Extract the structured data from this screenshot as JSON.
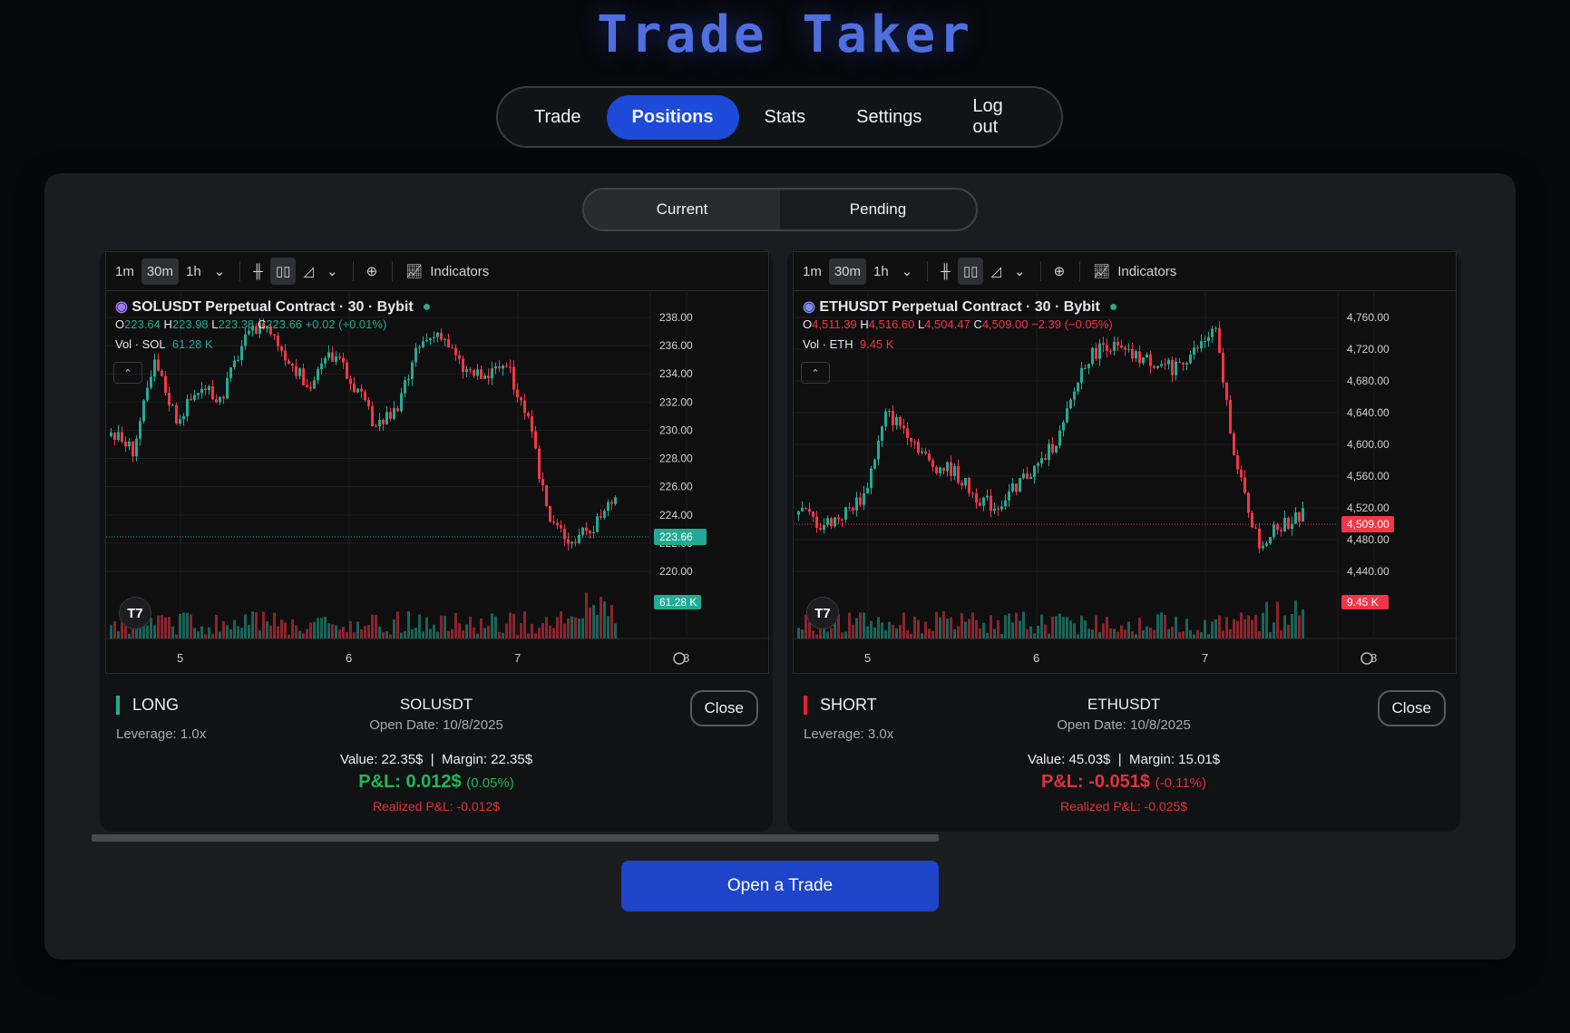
{
  "app": {
    "title": "Trade Taker"
  },
  "nav": [
    {
      "label": "Trade"
    },
    {
      "label": "Positions"
    },
    {
      "label": "Stats"
    },
    {
      "label": "Settings"
    },
    {
      "label": "Log out"
    }
  ],
  "tabs": {
    "current": "Current",
    "pending": "Pending"
  },
  "colors": {
    "up": "#22ab94",
    "down": "#f23645",
    "accent": "#1d4ad8"
  },
  "toolbar": {
    "tf1": "1m",
    "tf2": "30m",
    "tf3": "1h",
    "indicators": "Indicators"
  },
  "positions": [
    {
      "side": "LONG",
      "leverage": "Leverage: 1.0x",
      "symbol": "SOLUSDT",
      "open_date": "Open Date: 10/8/2025",
      "close": "Close",
      "value": "Value: 22.35$",
      "margin": "Margin: 22.35$",
      "pnl": "P&L: 0.012$",
      "pnl_pct": "(0.05%)",
      "realized": "Realized P&L: -0.012$",
      "chart": {
        "title": "SOLUSDT Perpetual Contract · 30 · Bybit",
        "o": "223.64",
        "h": "223.98",
        "l": "223.38",
        "c": "223.66",
        "chg": "+0.02 (+0.01%)",
        "vol_label": "Vol · SOL",
        "vol": "61.28 K",
        "price_tag": "223.66",
        "vol_tag": "61.28 K",
        "x_labels": [
          "5",
          "6",
          "7",
          "8"
        ],
        "y_labels": [
          "238.00",
          "236.00",
          "234.00",
          "232.00",
          "230.00",
          "228.00",
          "226.00",
          "224.00",
          "222.00",
          "220.00"
        ]
      }
    },
    {
      "side": "SHORT",
      "leverage": "Leverage: 3.0x",
      "symbol": "ETHUSDT",
      "open_date": "Open Date: 10/8/2025",
      "close": "Close",
      "value": "Value: 45.03$",
      "margin": "Margin: 15.01$",
      "pnl": "P&L: -0.051$",
      "pnl_pct": "(-0.11%)",
      "realized": "Realized P&L: -0.025$",
      "chart": {
        "title": "ETHUSDT Perpetual Contract · 30 · Bybit",
        "o": "4,511.39",
        "h": "4,516.60",
        "l": "4,504.47",
        "c": "4,509.00",
        "chg": "−2.39 (−0.05%)",
        "vol_label": "Vol · ETH",
        "vol": "9.45 K",
        "price_tag": "4,509.00",
        "vol_tag": "9.45 K",
        "x_labels": [
          "5",
          "6",
          "7",
          "8"
        ],
        "y_labels": [
          "4,760.00",
          "4,720.00",
          "4,680.00",
          "4,640.00",
          "4,600.00",
          "4,560.00",
          "4,520.00",
          "4,480.00",
          "4,440.00"
        ]
      }
    }
  ],
  "actions": {
    "open_trade": "Open a Trade"
  }
}
